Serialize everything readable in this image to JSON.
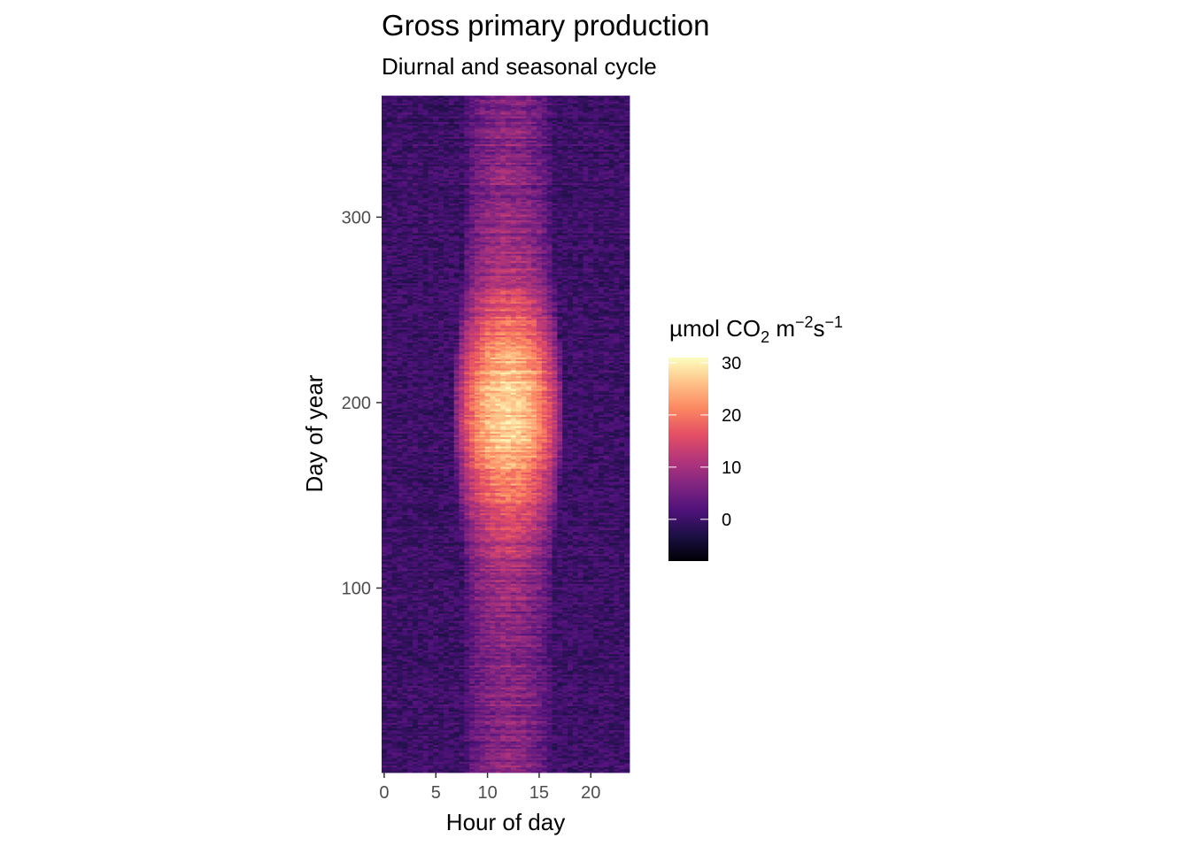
{
  "chart_data": {
    "type": "heatmap",
    "title": "Gross primary production",
    "subtitle": "Diurnal and seasonal cycle",
    "xlabel": "Hour of day",
    "ylabel": "Day of year",
    "x_ticks": [
      0,
      5,
      10,
      15,
      20
    ],
    "y_ticks": [
      100,
      200,
      300
    ],
    "x_range": [
      0,
      23.5
    ],
    "y_range": [
      1,
      365
    ],
    "x_step_hours": 0.5,
    "day_step": 1,
    "legend": {
      "title_parts": {
        "unit": "µmol CO",
        "sub": "2",
        "mid": " m",
        "sup1": "−2",
        "s": "s",
        "sup2": "−1"
      },
      "ticks": [
        0,
        10,
        20,
        30
      ],
      "range": [
        -8,
        31
      ],
      "placement": "right"
    },
    "colormap": "magma",
    "description_of_values": {
      "night_gpp": 0,
      "peak_hour": 12,
      "peak_day": 195,
      "peak_gpp": 28,
      "winter_midday_gpp": 7
    }
  }
}
